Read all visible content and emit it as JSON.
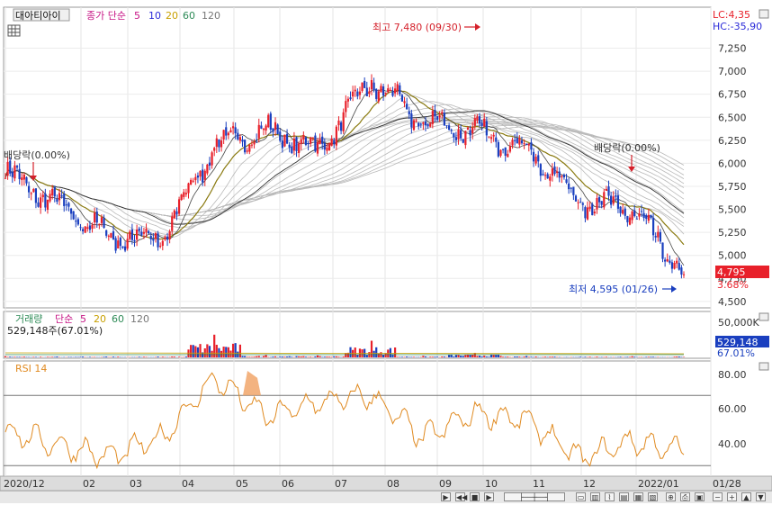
{
  "header": {
    "stock_name": "대아티아이",
    "ma_label": "종가 단순",
    "ma_periods": [
      "5",
      "10",
      "20",
      "60",
      "120"
    ],
    "lc_text": "LC:4,35",
    "hc_text": "HC:-35,90"
  },
  "colors": {
    "up": "#e8202a",
    "down": "#1a3fbf",
    "ma5": "#c71585",
    "ma10": "#2a2ad8",
    "ma20": "#c8a000",
    "ma60": "#2e8b57",
    "ma120": "#555555",
    "rsi": "#e08a20"
  },
  "price_panel": {
    "high_annotation": "최고 7,480 (09/30)",
    "low_annotation": "최저 4,595 (01/26)",
    "dividend_label_left": "배당락(0.00%)",
    "dividend_label_right": "배당락(0.00%)",
    "current_price": "4,795",
    "current_change": "3.68%",
    "y_ticks": [
      "7,250",
      "7,000",
      "6,750",
      "6,500",
      "6,250",
      "6,000",
      "5,750",
      "5,500",
      "5,250",
      "5,000",
      "4,750",
      "4,500"
    ]
  },
  "volume_panel": {
    "title": "거래량",
    "ma_label": "단순",
    "ma_periods": [
      "5",
      "20",
      "60",
      "120"
    ],
    "info": "529,148주(67.01%)",
    "y_tick": "50,000K",
    "current_volume": "529,148",
    "current_pct": "67.01%"
  },
  "rsi_panel": {
    "title": "RSI 14",
    "y_ticks": [
      "80.00",
      "60.00",
      "40.00"
    ]
  },
  "x_axis": {
    "labels": [
      "2020/12",
      "02",
      "03",
      "04",
      "05",
      "06",
      "07",
      "08",
      "09",
      "10",
      "11",
      "12",
      "2022/01",
      "01/28"
    ]
  },
  "chart_data": [
    {
      "type": "candlestick",
      "title": "대아티아이",
      "ylim": [
        4500,
        7480
      ],
      "x": [
        "2020/12",
        "02",
        "03",
        "04",
        "05",
        "06",
        "07",
        "08",
        "09",
        "10",
        "11",
        "12",
        "2022/01",
        "01/28"
      ],
      "series": [
        {
          "name": "종가",
          "values": [
            5900,
            5550,
            5200,
            5180,
            6200,
            6350,
            6150,
            6900,
            6450,
            6350,
            6150,
            5600,
            5500,
            4795
          ]
        }
      ],
      "high": {
        "value": 7480,
        "date": "09/30"
      },
      "low": {
        "value": 4595,
        "date": "01/26"
      },
      "last": 4795,
      "change_pct": 3.68
    },
    {
      "type": "bar",
      "title": "거래량",
      "ylim": [
        0,
        50000
      ],
      "x": [
        "2020/12",
        "02",
        "03",
        "04",
        "05",
        "06",
        "07",
        "08",
        "09",
        "10",
        "11",
        "12",
        "2022/01",
        "01/28"
      ],
      "series": [
        {
          "name": "거래량",
          "values": [
            1500,
            1200,
            800,
            900,
            30000,
            3000,
            2500,
            22000,
            2000,
            6000,
            1800,
            900,
            1500,
            529
          ]
        }
      ]
    },
    {
      "type": "line",
      "title": "RSI 14",
      "ylim": [
        25,
        85
      ],
      "x": [
        "2020/12",
        "02",
        "03",
        "04",
        "05",
        "06",
        "07",
        "08",
        "09",
        "10",
        "11",
        "12",
        "2022/01",
        "01/28"
      ],
      "series": [
        {
          "name": "RSI 14",
          "values": [
            50,
            42,
            35,
            46,
            80,
            58,
            66,
            70,
            46,
            60,
            56,
            34,
            44,
            38
          ]
        }
      ]
    }
  ]
}
